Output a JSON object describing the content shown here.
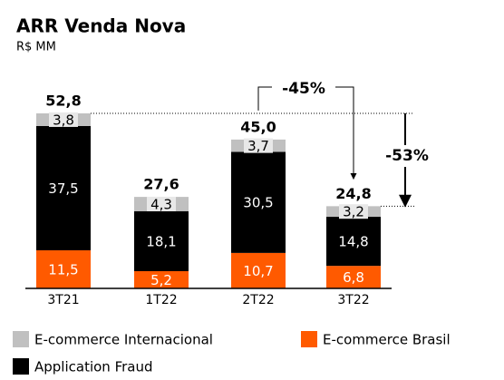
{
  "chart_data": {
    "type": "stacked-bar",
    "title": "ARR Venda Nova",
    "subtitle": "R$ MM",
    "categories": [
      "3T21",
      "1T22",
      "2T22",
      "3T22"
    ],
    "series": [
      {
        "name": "E-commerce Brasil",
        "color": "#ff5a00",
        "values": [
          11.5,
          5.2,
          10.7,
          6.8
        ],
        "value_labels": [
          "11,5",
          "5,2",
          "10,7",
          "6,8"
        ]
      },
      {
        "name": "Application Fraud",
        "color": "#000000",
        "values": [
          37.5,
          18.1,
          30.5,
          14.8
        ],
        "value_labels": [
          "37,5",
          "18,1",
          "30,5",
          "14,8"
        ]
      },
      {
        "name": "E-commerce Internacional",
        "color": "#c0c0c0",
        "values": [
          3.8,
          4.3,
          3.7,
          3.2
        ],
        "value_labels": [
          "3,8",
          "4,3",
          "3,7",
          "3,2"
        ]
      }
    ],
    "totals": [
      52.8,
      27.6,
      45.0,
      24.8
    ],
    "total_labels": [
      "52,8",
      "27,6",
      "45,0",
      "24,8"
    ],
    "annotations": [
      "-45%",
      "-53%"
    ]
  }
}
